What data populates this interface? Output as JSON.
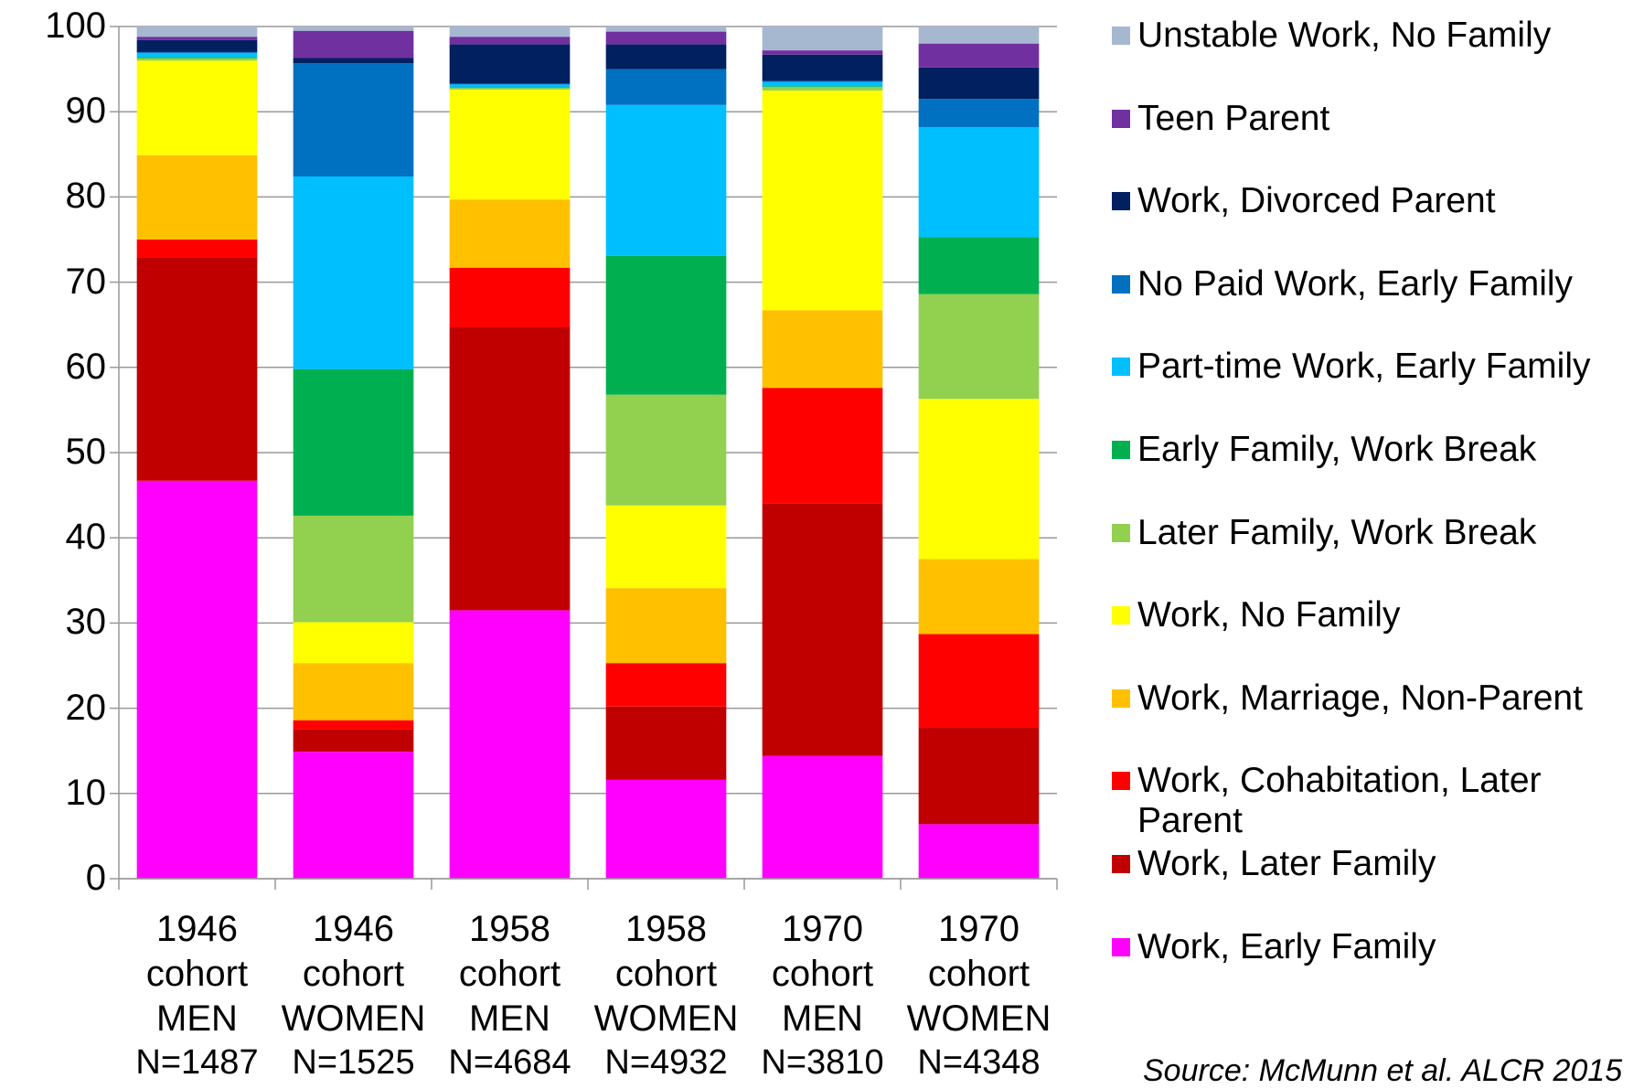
{
  "chart_data": {
    "type": "stacked_bar",
    "categories": [
      "1946 cohort MEN",
      "1946 cohort WOMEN",
      "1958 cohort MEN",
      "1958 cohort WOMEN",
      "1970 cohort MEN",
      "1970 cohort WOMEN"
    ],
    "sample_sizes": [
      "N=1487",
      "N=1525",
      "N=4684",
      "N=4932",
      "N=3810",
      "N=4348"
    ],
    "series": [
      {
        "name": "Work, Early Family",
        "color": "#ff00ff",
        "values": [
          46.7,
          14.9,
          31.5,
          11.6,
          14.4,
          6.4
        ]
      },
      {
        "name": "Work, Later Family",
        "color": "#c00000",
        "values": [
          26.2,
          2.6,
          33.2,
          8.6,
          29.6,
          11.3
        ]
      },
      {
        "name": "Work, Cohabitation, Later Parent",
        "color": "#ff0000",
        "values": [
          2.1,
          1.1,
          7.0,
          5.1,
          13.6,
          11.0
        ]
      },
      {
        "name": "Work, Marriage, Non-Parent",
        "color": "#ffc000",
        "values": [
          9.9,
          6.7,
          8.0,
          8.8,
          9.1,
          8.8
        ]
      },
      {
        "name": "Work, No Family",
        "color": "#ffff00",
        "values": [
          11.1,
          4.8,
          12.9,
          9.7,
          25.8,
          18.8
        ]
      },
      {
        "name": "Later Family, Work Break",
        "color": "#92d050",
        "values": [
          0.3,
          12.5,
          0.2,
          13.0,
          0.4,
          12.3
        ]
      },
      {
        "name": "Early Family, Work Break",
        "color": "#00b050",
        "values": [
          0.1,
          17.2,
          0.1,
          16.3,
          0.1,
          6.7
        ]
      },
      {
        "name": "Part-time Work, Early Family",
        "color": "#00bfff",
        "values": [
          0.5,
          22.6,
          0.3,
          17.7,
          0.5,
          12.9
        ]
      },
      {
        "name": "No Paid Work, Early Family",
        "color": "#0070c0",
        "values": [
          0.1,
          13.3,
          0.1,
          4.2,
          0.1,
          3.3
        ]
      },
      {
        "name": "Work, Divorced Parent",
        "color": "#002060",
        "values": [
          1.4,
          0.6,
          4.6,
          2.9,
          3.1,
          3.7
        ]
      },
      {
        "name": "Teen Parent",
        "color": "#7030a0",
        "values": [
          0.4,
          3.2,
          0.9,
          1.5,
          0.5,
          2.8
        ]
      },
      {
        "name": "Unstable Work, No Family",
        "color": "#a6b8d0",
        "values": [
          1.2,
          0.5,
          1.2,
          0.6,
          2.8,
          2.0
        ]
      }
    ],
    "ylim": [
      0,
      100
    ],
    "yticks": [
      0,
      10,
      20,
      30,
      40,
      50,
      60,
      70,
      80,
      90,
      100
    ],
    "grid": true,
    "legend": "right",
    "source": "Source: McMunn et al. ALCR 2015"
  }
}
